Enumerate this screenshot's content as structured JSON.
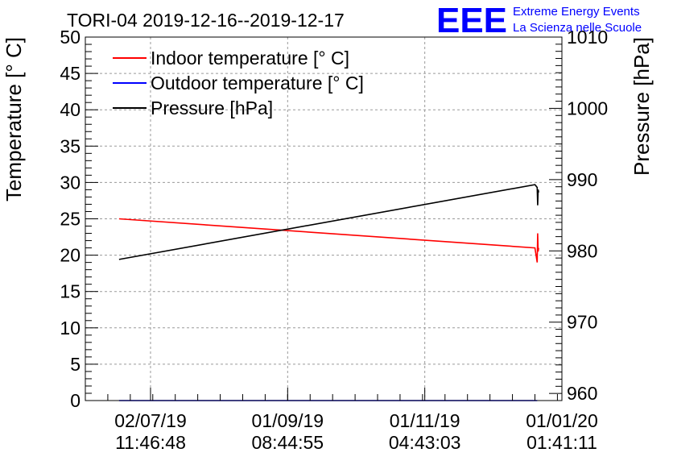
{
  "chart_data": {
    "type": "line",
    "title": "TORI-04 2019-12-16--2019-12-17",
    "ylabel": "Temperature [° C]",
    "y2label": "Pressure [hPa]",
    "ylim": [
      0,
      50
    ],
    "y2lim": [
      959,
      1010
    ],
    "y_ticks": [
      0,
      5,
      10,
      15,
      20,
      25,
      30,
      35,
      40,
      45,
      50
    ],
    "y2_ticks": [
      960,
      970,
      980,
      990,
      1000,
      1010
    ],
    "x_ticks": [
      {
        "date": "02/07/19",
        "time": "11:46:48"
      },
      {
        "date": "01/09/19",
        "time": "08:44:55"
      },
      {
        "date": "01/11/19",
        "time": "04:43:03"
      },
      {
        "date": "01/01/20",
        "time": "01:41:11"
      }
    ],
    "x_range": [
      "2019-06-03",
      "2020-01-01"
    ],
    "x_tick_dates": [
      "2019-07-02",
      "2019-09-01",
      "2019-11-01",
      "2020-01-01"
    ],
    "grid": true,
    "legend_position": "top-left",
    "series": [
      {
        "name": "Indoor temperature [° C]",
        "axis": "left",
        "color": "#ff0000",
        "x": [
          "2019-06-18",
          "2019-12-20",
          "2019-12-21",
          "2019-12-21",
          "2019-12-21",
          "2019-12-21"
        ],
        "y": [
          25.0,
          21.0,
          19.0,
          23.0,
          20.5,
          21.0
        ]
      },
      {
        "name": "Outdoor temperature [° C]",
        "axis": "left",
        "color": "#0000ff",
        "x": [
          "2019-06-18",
          "2019-12-21"
        ],
        "y": [
          0.0,
          0.0
        ]
      },
      {
        "name": "Pressure [hPa]",
        "axis": "right",
        "color": "#000000",
        "x": [
          "2019-06-18",
          "2019-12-20",
          "2019-12-21",
          "2019-12-21",
          "2019-12-21",
          "2019-12-21"
        ],
        "y": [
          978.8,
          989.3,
          988.9,
          986.4,
          988.6,
          988.2
        ]
      }
    ]
  },
  "branding": {
    "logo_text": "EEE",
    "line1": "Extreme Energy Events",
    "line2": "La Scienza nelle Scuole",
    "color": "#0000ff"
  }
}
